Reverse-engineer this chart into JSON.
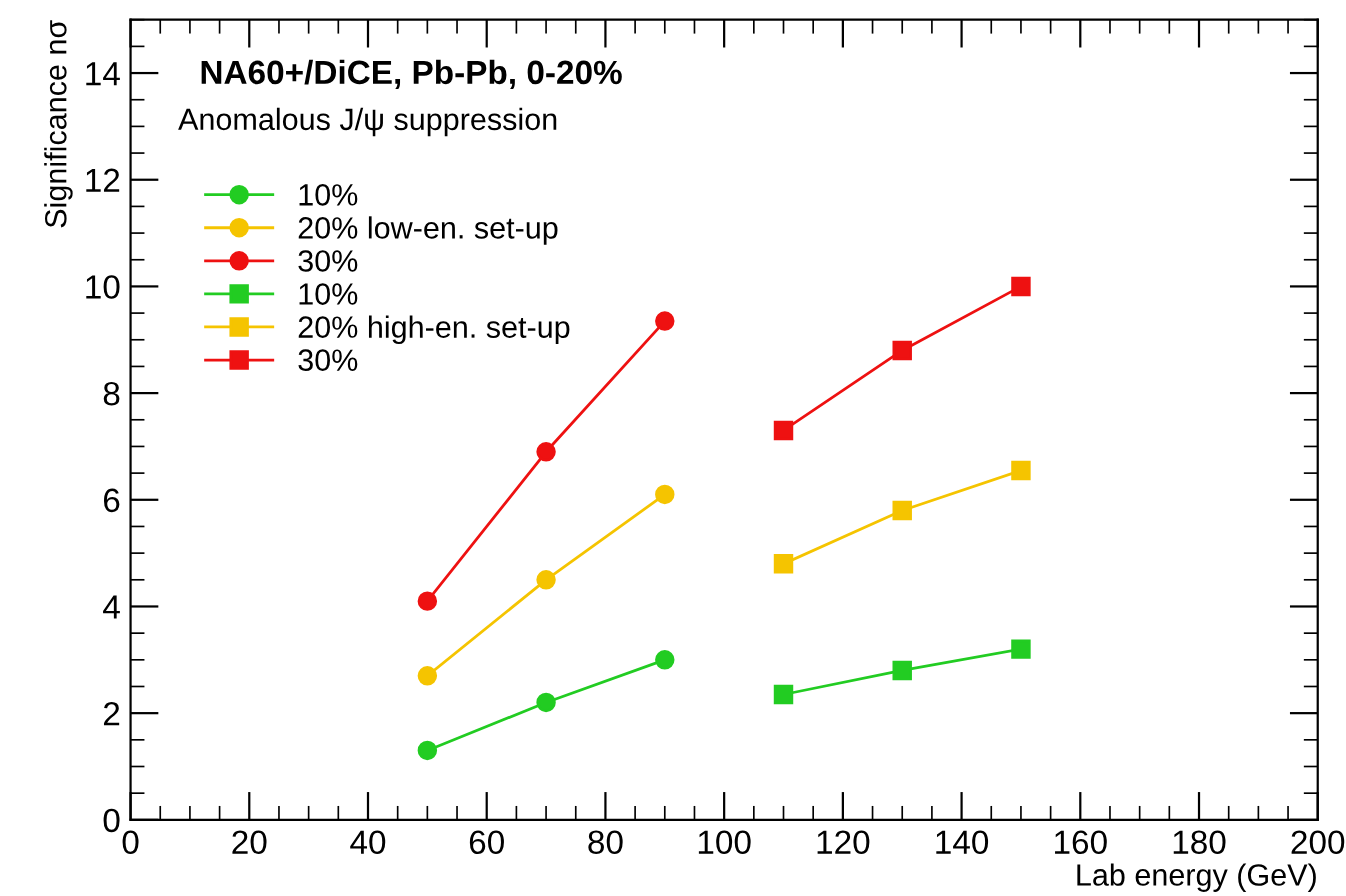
{
  "chart_data": {
    "type": "line",
    "title": "NA60+/DiCE, Pb-Pb, 0-20%",
    "subtitle": "Anomalous J/ψ suppression",
    "xlabel": "Lab energy (GeV)",
    "ylabel": "Significance nσ",
    "xlim": [
      0,
      200
    ],
    "xticks": [
      0,
      20,
      40,
      60,
      80,
      100,
      120,
      140,
      160,
      180,
      200
    ],
    "ylim": [
      0,
      15
    ],
    "yticks": [
      0,
      2,
      4,
      6,
      8,
      10,
      12,
      14
    ],
    "grid": false,
    "legend": "top left",
    "line_style": "solid",
    "series": [
      {
        "name": "10%",
        "color": "#22cc22",
        "marker": "circle",
        "x": [
          50,
          70,
          90
        ],
        "values": [
          1.3,
          2.2,
          3.0
        ]
      },
      {
        "name": "20% low-en. set-up",
        "color": "#f5c400",
        "marker": "circle",
        "x": [
          50,
          70,
          90
        ],
        "values": [
          2.7,
          4.5,
          6.1
        ]
      },
      {
        "name": "30%",
        "color": "#ee1111",
        "marker": "circle",
        "x": [
          50,
          70,
          90
        ],
        "values": [
          4.1,
          6.9,
          9.35
        ]
      },
      {
        "name": "10%",
        "color": "#22cc22",
        "marker": "square",
        "x": [
          110,
          130,
          150
        ],
        "values": [
          2.35,
          2.8,
          3.2
        ]
      },
      {
        "name": "20% high-en. set-up",
        "color": "#f5c400",
        "marker": "square",
        "x": [
          110,
          130,
          150
        ],
        "values": [
          4.8,
          5.8,
          6.55
        ]
      },
      {
        "name": "30%",
        "color": "#ee1111",
        "marker": "square",
        "x": [
          110,
          130,
          150
        ],
        "values": [
          7.3,
          8.8,
          10.0
        ]
      }
    ]
  }
}
